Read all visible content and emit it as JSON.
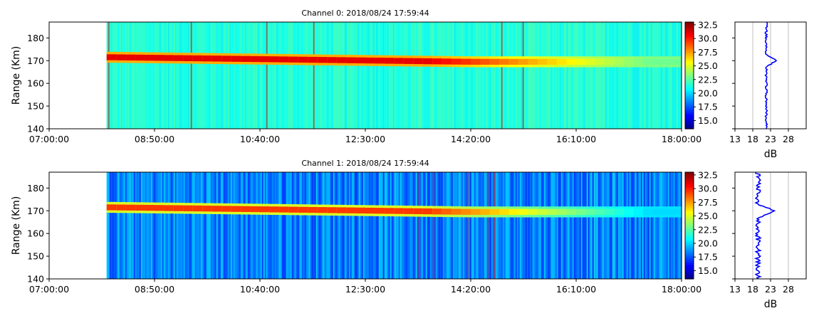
{
  "chart_data": [
    {
      "type": "heatmap",
      "title": "Channel 0: 2018/08/24 17:59:44",
      "ylabel": "Range (Km)",
      "xlabel": "",
      "x_ticks": [
        "07:00:00",
        "08:50:00",
        "10:40:00",
        "12:30:00",
        "14:20:00",
        "16:10:00",
        "18:00:00"
      ],
      "y_ticks": [
        140,
        150,
        160,
        170,
        180
      ],
      "ylim": [
        140,
        187
      ],
      "data_start": "08:00:00",
      "data_end": "18:00:00",
      "band_center_km": [
        171.5,
        169.5
      ],
      "background_db": 21.5,
      "peak_db": 31.0,
      "colorbar": {
        "colormap": "jet",
        "ticks": [
          15.0,
          17.5,
          20.0,
          22.5,
          25.0,
          27.5,
          30.0,
          32.5
        ],
        "range": [
          13.5,
          33.0
        ]
      },
      "profile": {
        "xlabel": "dB",
        "x_ticks": [
          13,
          18,
          23,
          28
        ],
        "xlim": [
          13,
          33
        ],
        "line_color": "#0000ff",
        "baseline_db": 21.8,
        "peak_db": 24.5,
        "peak_range_km": 170
      }
    },
    {
      "type": "heatmap",
      "title": "Channel 1: 2018/08/24 17:59:44",
      "ylabel": "Range (Km)",
      "xlabel": "",
      "x_ticks": [
        "07:00:00",
        "08:50:00",
        "10:40:00",
        "12:30:00",
        "14:20:00",
        "16:10:00",
        "18:00:00"
      ],
      "y_ticks": [
        140,
        150,
        160,
        170,
        180
      ],
      "ylim": [
        140,
        187
      ],
      "data_start": "08:00:00",
      "data_end": "18:00:00",
      "band_center_km": [
        171.5,
        169.5
      ],
      "background_db": 18.5,
      "peak_db": 29.5,
      "colorbar": {
        "colormap": "jet",
        "ticks": [
          15.0,
          17.5,
          20.0,
          22.5,
          25.0,
          27.5,
          30.0,
          32.5
        ],
        "range": [
          13.5,
          33.0
        ]
      },
      "profile": {
        "xlabel": "dB",
        "x_ticks": [
          13,
          18,
          23,
          28
        ],
        "xlim": [
          13,
          33
        ],
        "line_color": "#0000ff",
        "baseline_db": 19.5,
        "peak_db": 24.5,
        "peak_range_km": 170
      }
    }
  ]
}
